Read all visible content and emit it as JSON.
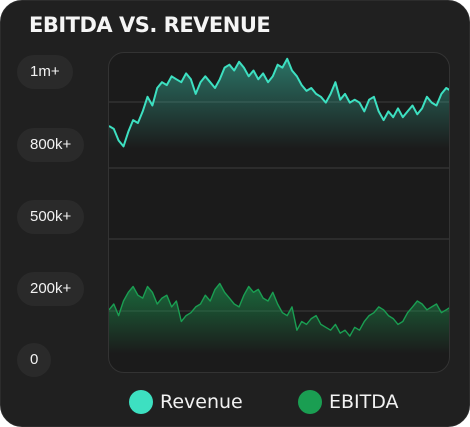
{
  "chart_data": {
    "type": "area",
    "title": "EBITDA VS. REVENUE",
    "yticks": [
      "1m+",
      "800k+",
      "500k+",
      "200k+",
      "0"
    ],
    "ylim": [
      0,
      1100000
    ],
    "grid": true,
    "legend_position": "bottom",
    "series": [
      {
        "name": "Revenue",
        "color": "#3de0c1",
        "values": [
          850000,
          840000,
          800000,
          780000,
          830000,
          870000,
          860000,
          900000,
          950000,
          920000,
          980000,
          1000000,
          990000,
          1020000,
          1010000,
          1000000,
          1030000,
          1010000,
          960000,
          1000000,
          1020000,
          1000000,
          980000,
          1010000,
          1050000,
          1060000,
          1040000,
          1070000,
          1050000,
          1020000,
          1040000,
          1010000,
          1030000,
          1000000,
          1020000,
          1060000,
          1050000,
          1080000,
          1040000,
          1020000,
          990000,
          970000,
          980000,
          960000,
          950000,
          930000,
          960000,
          1000000,
          940000,
          960000,
          930000,
          940000,
          930000,
          900000,
          940000,
          950000,
          900000,
          870000,
          900000,
          880000,
          910000,
          880000,
          900000,
          920000,
          890000,
          910000,
          950000,
          930000,
          920000,
          960000,
          980000,
          970000
        ]
      },
      {
        "name": "EBITDA",
        "color": "#1a9e52",
        "values": [
          220000,
          240000,
          200000,
          250000,
          280000,
          300000,
          270000,
          260000,
          300000,
          280000,
          240000,
          260000,
          270000,
          230000,
          250000,
          180000,
          200000,
          210000,
          230000,
          240000,
          270000,
          250000,
          290000,
          310000,
          280000,
          260000,
          240000,
          230000,
          270000,
          300000,
          280000,
          290000,
          260000,
          250000,
          280000,
          240000,
          210000,
          200000,
          230000,
          150000,
          180000,
          170000,
          190000,
          200000,
          170000,
          160000,
          150000,
          170000,
          140000,
          150000,
          130000,
          160000,
          150000,
          180000,
          200000,
          210000,
          230000,
          220000,
          200000,
          190000,
          170000,
          180000,
          210000,
          230000,
          250000,
          240000,
          220000,
          230000,
          240000,
          210000,
          220000,
          230000
        ]
      }
    ]
  }
}
